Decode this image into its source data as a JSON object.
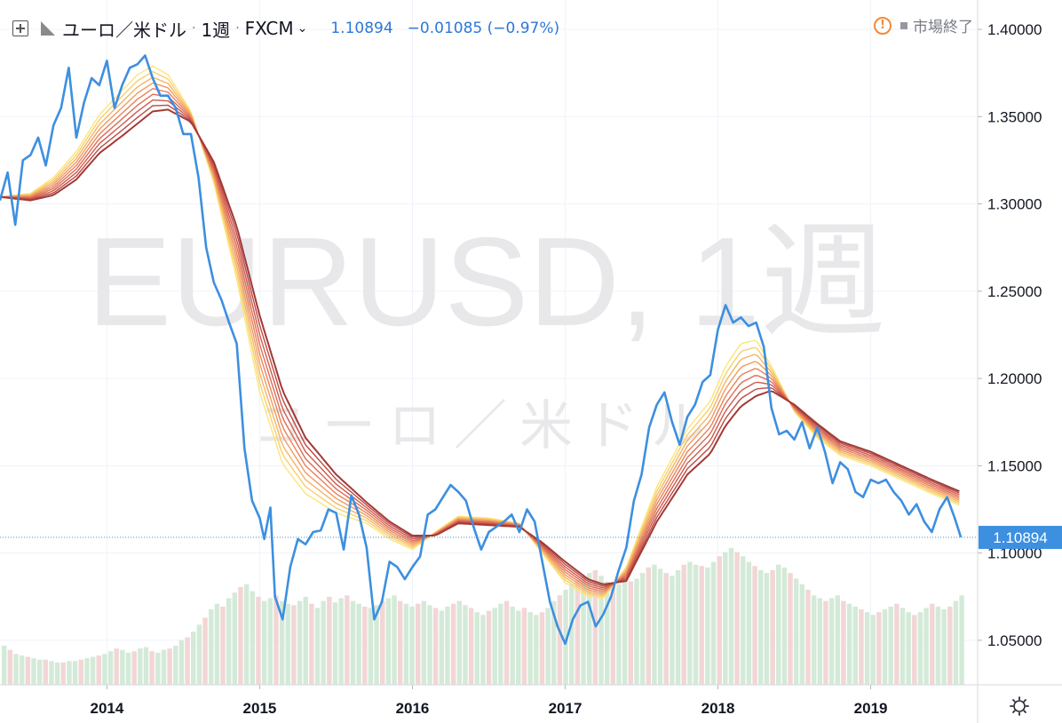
{
  "header": {
    "symbol_name": "ユーロ／米ドル",
    "interval": "1週",
    "broker": "FXCM",
    "price": "1.10894",
    "change": "−0.01085 (−0.97%)",
    "market_status": "市場終了"
  },
  "watermark": {
    "main": "EURUSD, 1週",
    "sub": "ユーロ／米ドル"
  },
  "colors": {
    "price_line": "#3d8fe0",
    "ribbon": [
      "#fbe57a",
      "#f8cf6e",
      "#f4b465",
      "#f09b5f",
      "#e9825a",
      "#de6c55",
      "#cf5a4e",
      "#bd4a44",
      "#a23a36"
    ],
    "volume_up": "#cfe8d4",
    "volume_down": "#f1d2d2",
    "price_label_bg": "#3d8fe0"
  },
  "chart_data": {
    "type": "line",
    "y_axis_ticks": [
      "1.40000",
      "1.35000",
      "1.30000",
      "1.25000",
      "1.20000",
      "1.15000",
      "1.10000",
      "1.05000"
    ],
    "ylim": [
      1.0245,
      1.4168
    ],
    "x_axis_ticks": [
      "2014",
      "2015",
      "2016",
      "2017",
      "2018",
      "2019"
    ],
    "xlim": [
      2013.3,
      2019.7
    ],
    "last_price_label": "1.10894",
    "last_price": 1.10894,
    "series": [
      {
        "role": "close",
        "x": [
          2013.3,
          2013.35,
          2013.4,
          2013.45,
          2013.5,
          2013.55,
          2013.6,
          2013.65,
          2013.7,
          2013.75,
          2013.8,
          2013.85,
          2013.9,
          2013.95,
          2014.0,
          2014.05,
          2014.1,
          2014.15,
          2014.2,
          2014.25,
          2014.3,
          2014.35,
          2014.4,
          2014.45,
          2014.5,
          2014.55,
          2014.6,
          2014.65,
          2014.7,
          2014.75,
          2014.8,
          2014.85,
          2014.9,
          2014.95,
          2015.0,
          2015.03,
          2015.07,
          2015.1,
          2015.15,
          2015.2,
          2015.25,
          2015.3,
          2015.35,
          2015.4,
          2015.45,
          2015.5,
          2015.55,
          2015.6,
          2015.65,
          2015.7,
          2015.75,
          2015.8,
          2015.85,
          2015.9,
          2015.95,
          2016.0,
          2016.05,
          2016.1,
          2016.15,
          2016.2,
          2016.25,
          2016.3,
          2016.35,
          2016.4,
          2016.45,
          2016.5,
          2016.55,
          2016.6,
          2016.65,
          2016.7,
          2016.75,
          2016.8,
          2016.85,
          2016.9,
          2016.95,
          2017.0,
          2017.05,
          2017.1,
          2017.15,
          2017.2,
          2017.25,
          2017.3,
          2017.35,
          2017.4,
          2017.45,
          2017.5,
          2017.55,
          2017.6,
          2017.65,
          2017.7,
          2017.75,
          2017.8,
          2017.85,
          2017.9,
          2017.95,
          2018.0,
          2018.05,
          2018.1,
          2018.15,
          2018.2,
          2018.25,
          2018.3,
          2018.35,
          2018.4,
          2018.45,
          2018.5,
          2018.55,
          2018.6,
          2018.65,
          2018.7,
          2018.75,
          2018.8,
          2018.85,
          2018.9,
          2018.95,
          2019.0,
          2019.05,
          2019.1,
          2019.15,
          2019.2,
          2019.25,
          2019.3,
          2019.35,
          2019.4,
          2019.45,
          2019.5,
          2019.55,
          2019.59
        ],
        "y": [
          1.302,
          1.318,
          1.288,
          1.325,
          1.328,
          1.338,
          1.322,
          1.345,
          1.355,
          1.378,
          1.338,
          1.358,
          1.372,
          1.368,
          1.382,
          1.355,
          1.368,
          1.378,
          1.38,
          1.385,
          1.372,
          1.362,
          1.362,
          1.355,
          1.34,
          1.34,
          1.315,
          1.275,
          1.255,
          1.245,
          1.232,
          1.22,
          1.16,
          1.13,
          1.12,
          1.108,
          1.126,
          1.075,
          1.062,
          1.092,
          1.108,
          1.105,
          1.112,
          1.113,
          1.125,
          1.123,
          1.102,
          1.133,
          1.122,
          1.103,
          1.062,
          1.072,
          1.095,
          1.092,
          1.085,
          1.092,
          1.098,
          1.122,
          1.125,
          1.132,
          1.139,
          1.135,
          1.13,
          1.115,
          1.102,
          1.112,
          1.115,
          1.118,
          1.122,
          1.112,
          1.125,
          1.118,
          1.095,
          1.072,
          1.058,
          1.048,
          1.062,
          1.07,
          1.072,
          1.058,
          1.065,
          1.075,
          1.09,
          1.103,
          1.13,
          1.145,
          1.172,
          1.185,
          1.192,
          1.175,
          1.162,
          1.178,
          1.185,
          1.198,
          1.202,
          1.228,
          1.242,
          1.232,
          1.235,
          1.23,
          1.232,
          1.218,
          1.183,
          1.168,
          1.17,
          1.165,
          1.175,
          1.16,
          1.172,
          1.158,
          1.14,
          1.152,
          1.148,
          1.135,
          1.132,
          1.142,
          1.14,
          1.142,
          1.135,
          1.13,
          1.122,
          1.128,
          1.118,
          1.112,
          1.125,
          1.132,
          1.12,
          1.109
        ]
      },
      {
        "role": "ema_ribbon_center",
        "x": [
          2013.3,
          2013.5,
          2013.65,
          2013.8,
          2013.95,
          2014.1,
          2014.2,
          2014.3,
          2014.4,
          2014.55,
          2014.7,
          2014.85,
          2015.0,
          2015.15,
          2015.3,
          2015.5,
          2015.7,
          2015.85,
          2016.0,
          2016.15,
          2016.3,
          2016.5,
          2016.7,
          2016.85,
          2017.0,
          2017.15,
          2017.25,
          2017.4,
          2017.6,
          2017.8,
          2017.95,
          2018.05,
          2018.15,
          2018.25,
          2018.35,
          2018.5,
          2018.65,
          2018.8,
          2019.0,
          2019.2,
          2019.4,
          2019.59
        ],
        "y": [
          1.304,
          1.304,
          1.31,
          1.322,
          1.34,
          1.352,
          1.36,
          1.366,
          1.364,
          1.35,
          1.318,
          1.272,
          1.214,
          1.172,
          1.15,
          1.134,
          1.123,
          1.113,
          1.106,
          1.111,
          1.119,
          1.118,
          1.116,
          1.103,
          1.089,
          1.08,
          1.078,
          1.088,
          1.128,
          1.158,
          1.172,
          1.19,
          1.202,
          1.206,
          1.2,
          1.183,
          1.17,
          1.16,
          1.154,
          1.146,
          1.138,
          1.131
        ],
        "ribbon_spread": [
          0.0,
          0.004,
          0.01,
          0.016,
          0.022,
          0.026,
          0.028,
          0.026,
          0.02,
          0.006,
          -0.012,
          -0.03,
          -0.044,
          -0.042,
          -0.032,
          -0.022,
          -0.012,
          -0.01,
          -0.008,
          0.002,
          0.004,
          0.004,
          0.002,
          -0.006,
          -0.012,
          -0.01,
          -0.008,
          0.008,
          0.02,
          0.026,
          0.03,
          0.034,
          0.036,
          0.032,
          0.014,
          -0.004,
          -0.008,
          -0.008,
          -0.008,
          -0.008,
          -0.008,
          -0.008
        ]
      }
    ],
    "volume": {
      "count": 163,
      "seed_description": "relative bar heights 0..1",
      "heights": [
        0.28,
        0.25,
        0.22,
        0.21,
        0.2,
        0.19,
        0.18,
        0.18,
        0.17,
        0.16,
        0.16,
        0.17,
        0.17,
        0.18,
        0.19,
        0.2,
        0.21,
        0.22,
        0.24,
        0.26,
        0.25,
        0.23,
        0.24,
        0.26,
        0.27,
        0.24,
        0.23,
        0.25,
        0.26,
        0.28,
        0.32,
        0.34,
        0.38,
        0.43,
        0.48,
        0.54,
        0.58,
        0.56,
        0.62,
        0.66,
        0.7,
        0.72,
        0.67,
        0.63,
        0.6,
        0.62,
        0.64,
        0.6,
        0.58,
        0.57,
        0.6,
        0.63,
        0.58,
        0.55,
        0.6,
        0.63,
        0.59,
        0.62,
        0.64,
        0.6,
        0.58,
        0.56,
        0.55,
        0.57,
        0.6,
        0.62,
        0.64,
        0.6,
        0.58,
        0.56,
        0.58,
        0.6,
        0.57,
        0.55,
        0.53,
        0.56,
        0.58,
        0.6,
        0.57,
        0.55,
        0.52,
        0.5,
        0.53,
        0.55,
        0.58,
        0.6,
        0.56,
        0.53,
        0.55,
        0.52,
        0.5,
        0.52,
        0.55,
        0.6,
        0.64,
        0.68,
        0.72,
        0.75,
        0.78,
        0.8,
        0.82,
        0.78,
        0.74,
        0.7,
        0.72,
        0.75,
        0.74,
        0.76,
        0.8,
        0.84,
        0.86,
        0.83,
        0.8,
        0.78,
        0.82,
        0.86,
        0.88,
        0.86,
        0.85,
        0.84,
        0.88,
        0.92,
        0.95,
        0.98,
        0.95,
        0.92,
        0.88,
        0.85,
        0.82,
        0.8,
        0.82,
        0.86,
        0.84,
        0.8,
        0.76,
        0.72,
        0.68,
        0.64,
        0.62,
        0.6,
        0.62,
        0.64,
        0.6,
        0.58,
        0.56,
        0.54,
        0.52,
        0.5,
        0.52,
        0.54,
        0.56,
        0.58,
        0.55,
        0.52,
        0.5,
        0.52,
        0.55,
        0.58,
        0.56,
        0.54,
        0.56,
        0.6,
        0.64
      ]
    }
  }
}
